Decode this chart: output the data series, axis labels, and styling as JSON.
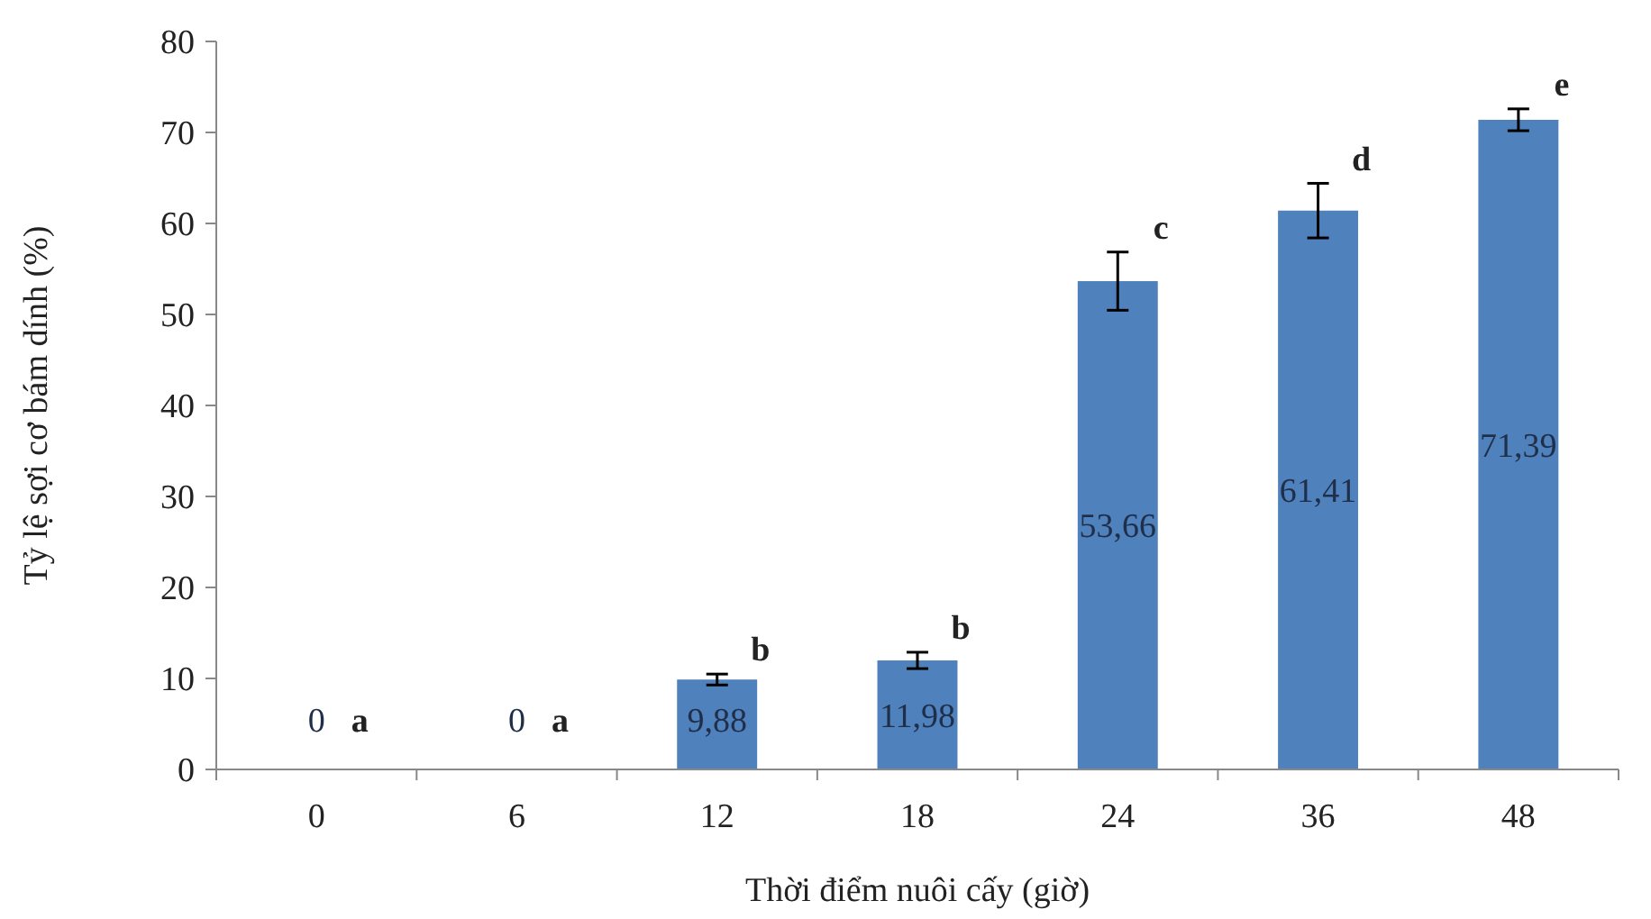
{
  "chart_data": {
    "type": "bar",
    "xlabel": "Thời điểm nuôi cấy (giờ)",
    "ylabel": "Tỷ lệ sợi cơ bám dính (%)",
    "categories": [
      "0",
      "6",
      "12",
      "18",
      "24",
      "36",
      "48"
    ],
    "values": [
      0,
      0,
      9.88,
      11.98,
      53.66,
      61.41,
      71.39
    ],
    "errors": [
      null,
      null,
      0.6,
      0.9,
      3.2,
      3,
      1.2
    ],
    "value_labels": [
      "0",
      "0",
      "9,88",
      "11,98",
      "53,66",
      "61,41",
      "71,39"
    ],
    "color": "#4f81bd",
    "ylim": [
      0,
      80
    ],
    "yticks": [
      0,
      10,
      20,
      30,
      40,
      50,
      60,
      70,
      80
    ],
    "grid": false,
    "annotations": [
      {
        "text": "a",
        "x": "0",
        "y": 0
      },
      {
        "text": "a",
        "x": "6",
        "y": 0
      },
      {
        "text": "b",
        "x": "12",
        "y": 9.88
      },
      {
        "text": "b",
        "x": "18",
        "y": 11.98
      },
      {
        "text": "c",
        "x": "24",
        "y": 53.66
      },
      {
        "text": "d",
        "x": "36",
        "y": 61.41
      },
      {
        "text": "e",
        "x": "48",
        "y": 71.39
      }
    ]
  }
}
